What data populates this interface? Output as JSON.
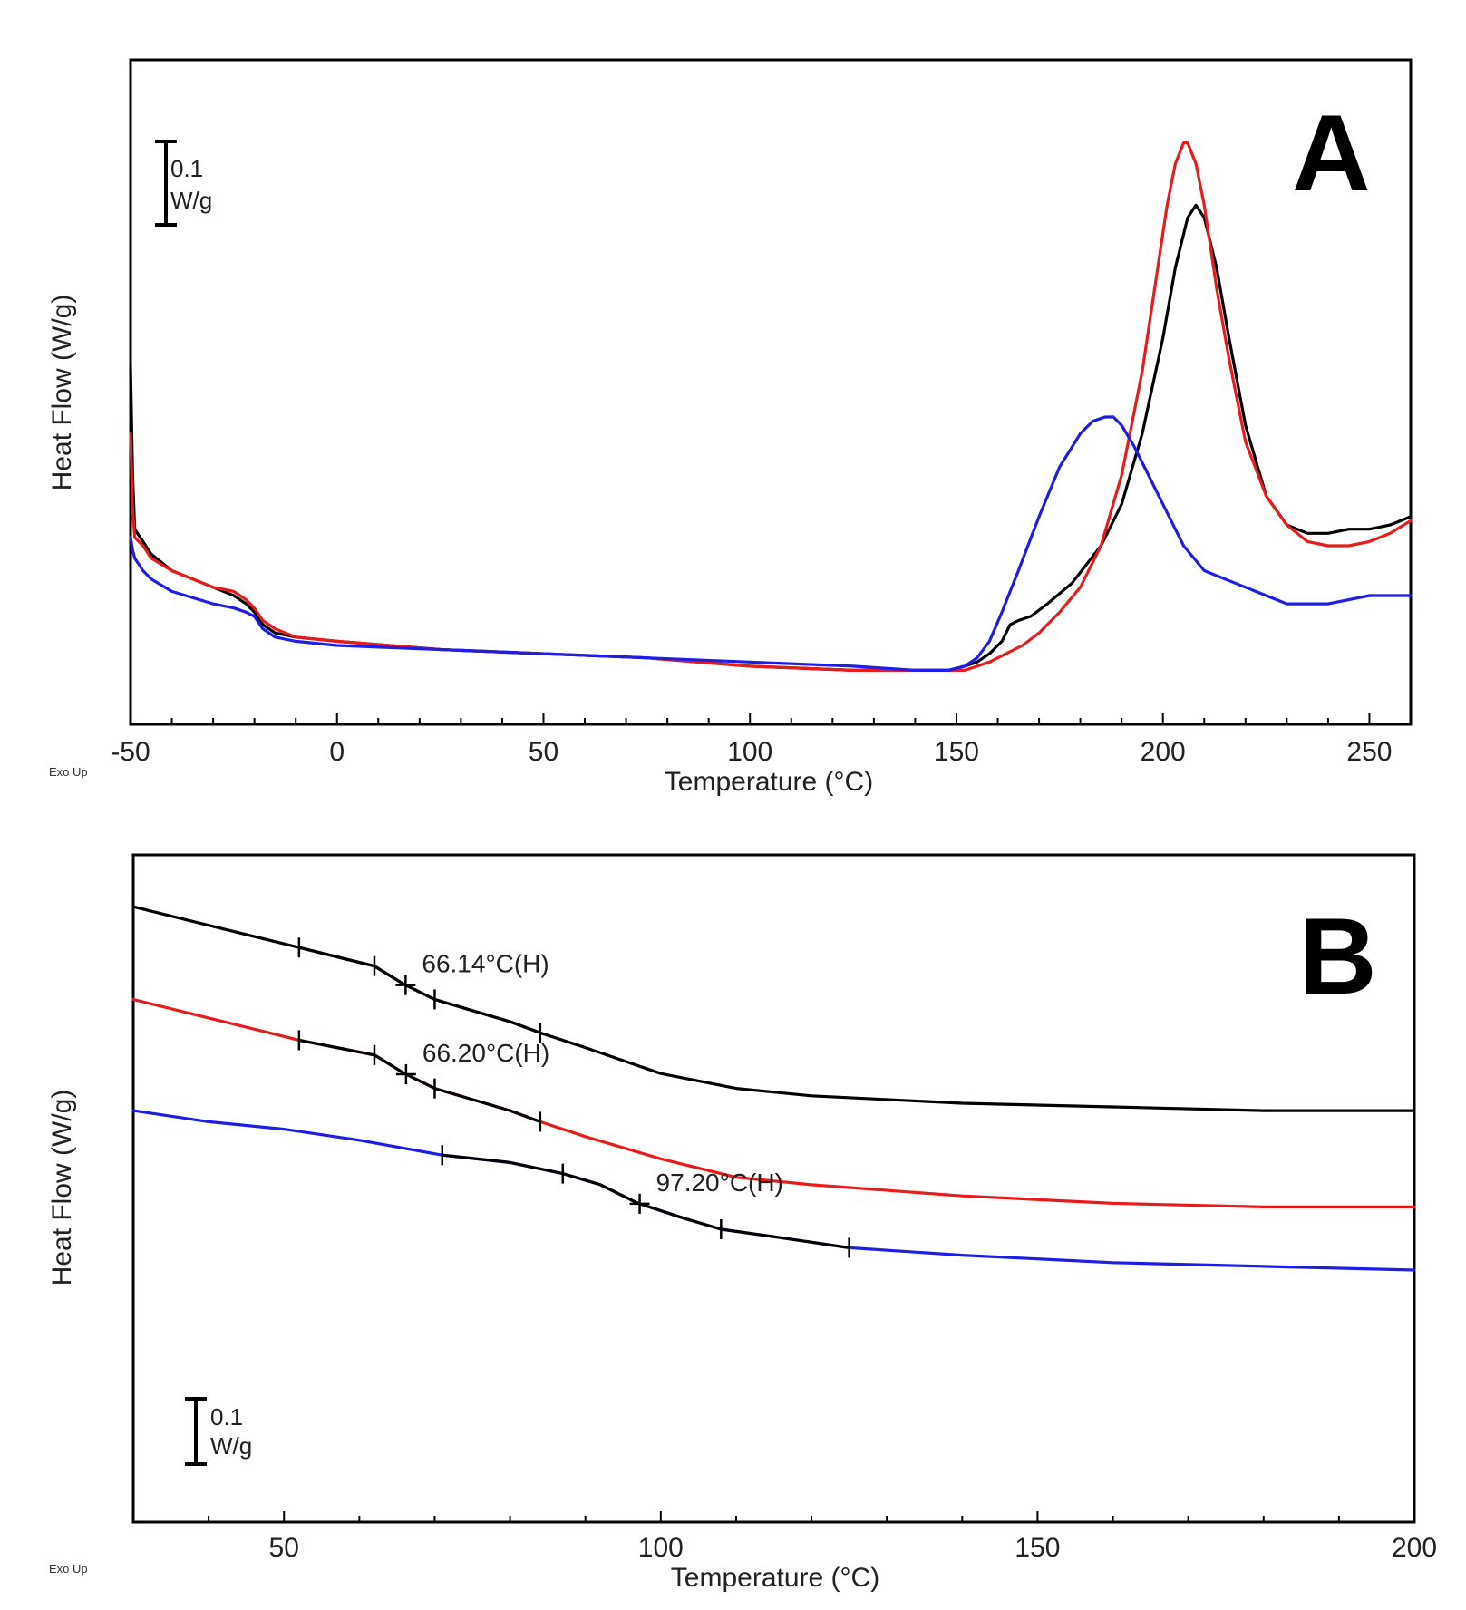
{
  "chart_data": [
    {
      "panel": "A",
      "type": "line",
      "xlabel": "Temperature (°C)",
      "ylabel": "Heat Flow (W/g)",
      "corner_note": "Exo Up",
      "xlim": [
        -50,
        260
      ],
      "ylim": [
        0.0,
        1.6
      ],
      "xticks": [
        -50,
        0,
        50,
        100,
        150,
        200,
        250
      ],
      "scale_bar": {
        "value": 0.1,
        "label_top": "0.1",
        "label_bottom": "W/g"
      },
      "series": [
        {
          "name": "black",
          "color": "#000000",
          "x": [
            -50,
            -49.5,
            -49,
            -47,
            -45,
            -40,
            -30,
            -25,
            -22,
            -20,
            -18,
            -15,
            -10,
            0,
            25,
            50,
            75,
            100,
            125,
            140,
            148,
            152,
            155,
            158,
            161,
            163,
            165,
            168,
            172,
            178,
            185,
            190,
            195,
            200,
            203,
            206,
            208,
            210,
            213,
            216,
            220,
            225,
            230,
            235,
            240,
            245,
            250,
            255,
            260
          ],
          "y": [
            0.86,
            0.6,
            0.47,
            0.44,
            0.41,
            0.37,
            0.33,
            0.31,
            0.29,
            0.27,
            0.24,
            0.22,
            0.21,
            0.2,
            0.18,
            0.17,
            0.16,
            0.14,
            0.13,
            0.13,
            0.13,
            0.14,
            0.15,
            0.17,
            0.2,
            0.24,
            0.25,
            0.26,
            0.29,
            0.34,
            0.43,
            0.53,
            0.7,
            0.93,
            1.1,
            1.22,
            1.25,
            1.22,
            1.1,
            0.93,
            0.72,
            0.55,
            0.48,
            0.46,
            0.46,
            0.47,
            0.47,
            0.48,
            0.5
          ]
        },
        {
          "name": "red",
          "color": "#e81c1c",
          "x": [
            -50,
            -49.5,
            -49,
            -47,
            -45,
            -40,
            -30,
            -25,
            -22,
            -20,
            -18,
            -15,
            -10,
            0,
            25,
            50,
            75,
            100,
            125,
            140,
            148,
            152,
            155,
            158,
            162,
            166,
            170,
            175,
            180,
            185,
            190,
            195,
            198,
            201,
            203,
            205,
            206,
            208,
            210,
            213,
            216,
            220,
            225,
            230,
            235,
            240,
            245,
            250,
            255,
            260
          ],
          "y": [
            0.7,
            0.52,
            0.45,
            0.43,
            0.4,
            0.37,
            0.33,
            0.32,
            0.3,
            0.28,
            0.25,
            0.23,
            0.21,
            0.2,
            0.18,
            0.17,
            0.16,
            0.14,
            0.13,
            0.13,
            0.13,
            0.13,
            0.14,
            0.15,
            0.17,
            0.19,
            0.22,
            0.27,
            0.33,
            0.43,
            0.6,
            0.85,
            1.05,
            1.25,
            1.35,
            1.4,
            1.4,
            1.35,
            1.25,
            1.05,
            0.88,
            0.68,
            0.55,
            0.48,
            0.44,
            0.43,
            0.43,
            0.44,
            0.46,
            0.49
          ]
        },
        {
          "name": "blue",
          "color": "#1e1ee6",
          "x": [
            -50,
            -49.5,
            -49,
            -47,
            -45,
            -40,
            -30,
            -25,
            -22,
            -20,
            -18,
            -15,
            -10,
            0,
            25,
            50,
            75,
            100,
            125,
            140,
            145,
            148,
            152,
            155,
            158,
            161,
            165,
            170,
            175,
            180,
            183,
            186,
            188,
            190,
            193,
            196,
            200,
            205,
            210,
            215,
            220,
            225,
            230,
            235,
            240,
            245,
            250,
            255,
            260
          ],
          "y": [
            0.45,
            0.42,
            0.4,
            0.37,
            0.35,
            0.32,
            0.29,
            0.28,
            0.27,
            0.26,
            0.23,
            0.21,
            0.2,
            0.19,
            0.18,
            0.17,
            0.16,
            0.15,
            0.14,
            0.13,
            0.13,
            0.13,
            0.14,
            0.16,
            0.2,
            0.27,
            0.37,
            0.5,
            0.62,
            0.7,
            0.73,
            0.74,
            0.74,
            0.72,
            0.67,
            0.61,
            0.53,
            0.43,
            0.37,
            0.35,
            0.33,
            0.31,
            0.29,
            0.29,
            0.29,
            0.3,
            0.31,
            0.31,
            0.31
          ]
        }
      ]
    },
    {
      "panel": "B",
      "type": "line",
      "xlabel": "Temperature (°C)",
      "ylabel": "Heat Flow (W/g)",
      "corner_note": "Exo Up",
      "xlim": [
        30,
        200
      ],
      "ylim": [
        0.0,
        1.8
      ],
      "xticks": [
        50,
        100,
        150,
        200
      ],
      "scale_bar": {
        "value": 0.1,
        "label_top": "0.1",
        "label_bottom": "W/g"
      },
      "series": [
        {
          "name": "black",
          "color": "#000000",
          "x": [
            30,
            40,
            52,
            62,
            66,
            70,
            80,
            84,
            90,
            100,
            110,
            120,
            140,
            160,
            180,
            200
          ],
          "y": [
            1.66,
            1.61,
            1.55,
            1.5,
            1.45,
            1.41,
            1.35,
            1.32,
            1.28,
            1.21,
            1.17,
            1.15,
            1.13,
            1.12,
            1.11,
            1.11
          ],
          "analysis_markers": [
            52,
            62,
            70,
            84
          ],
          "midpoint": 66.14,
          "annotation": "66.14°C(H)"
        },
        {
          "name": "red",
          "color": "#e81c1c",
          "x": [
            30,
            40,
            52,
            62,
            66,
            70,
            80,
            84,
            90,
            100,
            110,
            120,
            140,
            160,
            180,
            200
          ],
          "y": [
            1.41,
            1.36,
            1.3,
            1.26,
            1.21,
            1.17,
            1.11,
            1.08,
            1.04,
            0.98,
            0.93,
            0.91,
            0.88,
            0.86,
            0.85,
            0.85
          ],
          "analysis_markers": [
            52,
            62,
            70,
            84
          ],
          "midpoint": 66.2,
          "annotation": "66.20°C(H)"
        },
        {
          "name": "blue",
          "color": "#1e1ee6",
          "x": [
            30,
            40,
            50,
            60,
            71,
            80,
            87,
            92,
            97,
            103,
            108,
            115,
            125,
            140,
            160,
            180,
            200
          ],
          "y": [
            1.11,
            1.08,
            1.06,
            1.03,
            0.99,
            0.97,
            0.94,
            0.91,
            0.86,
            0.82,
            0.79,
            0.77,
            0.74,
            0.72,
            0.7,
            0.69,
            0.68
          ],
          "analysis_markers": [
            71,
            87,
            108,
            125
          ],
          "midpoint": 97.2,
          "annotation": "97.20°C(H)"
        }
      ]
    }
  ]
}
